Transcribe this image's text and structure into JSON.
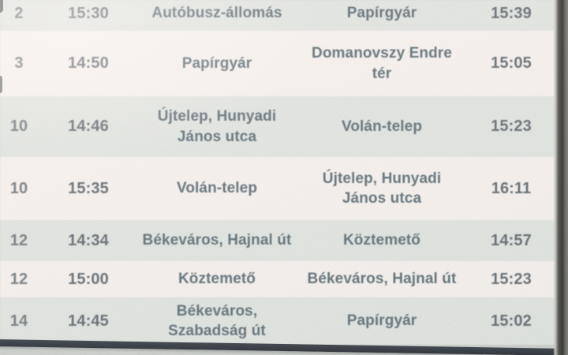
{
  "board": {
    "description": "Bus departures information display",
    "columns": [
      "line",
      "departure_time",
      "origin_stop",
      "destination_stop",
      "arrival_time"
    ],
    "rows": [
      {
        "line": "2",
        "departure": "15:30",
        "origin": "Autóbusz-állomás",
        "destination": "Papírgyár",
        "arrival": "15:39"
      },
      {
        "line": "3",
        "departure": "14:50",
        "origin": "Papírgyár",
        "destination": "Domanovszy Endre\ntér",
        "arrival": "15:05"
      },
      {
        "line": "10",
        "departure": "14:46",
        "origin": "Újtelep, Hunyadi\nJános utca",
        "destination": "Volán-telep",
        "arrival": "15:23"
      },
      {
        "line": "10",
        "departure": "15:35",
        "origin": "Volán-telep",
        "destination": "Újtelep, Hunyadi\nJános utca",
        "arrival": "16:11"
      },
      {
        "line": "12",
        "departure": "14:34",
        "origin": "Békeváros, Hajnal út",
        "destination": "Köztemető",
        "arrival": "14:57"
      },
      {
        "line": "12",
        "departure": "15:00",
        "origin": "Köztemető",
        "destination": "Békeváros, Hajnal út",
        "arrival": "15:23"
      },
      {
        "line": "14",
        "departure": "14:45",
        "origin": "Békeváros,\nSzabadság út",
        "destination": "Papírgyár",
        "arrival": "15:02"
      }
    ],
    "colors": {
      "row_gray": "#e2e6e2",
      "row_white": "#f9f4f1",
      "stop_text": "#54666f",
      "time_text": "#59626a",
      "line_text": "#6d757a",
      "bottom_bar": "#20262e"
    }
  }
}
